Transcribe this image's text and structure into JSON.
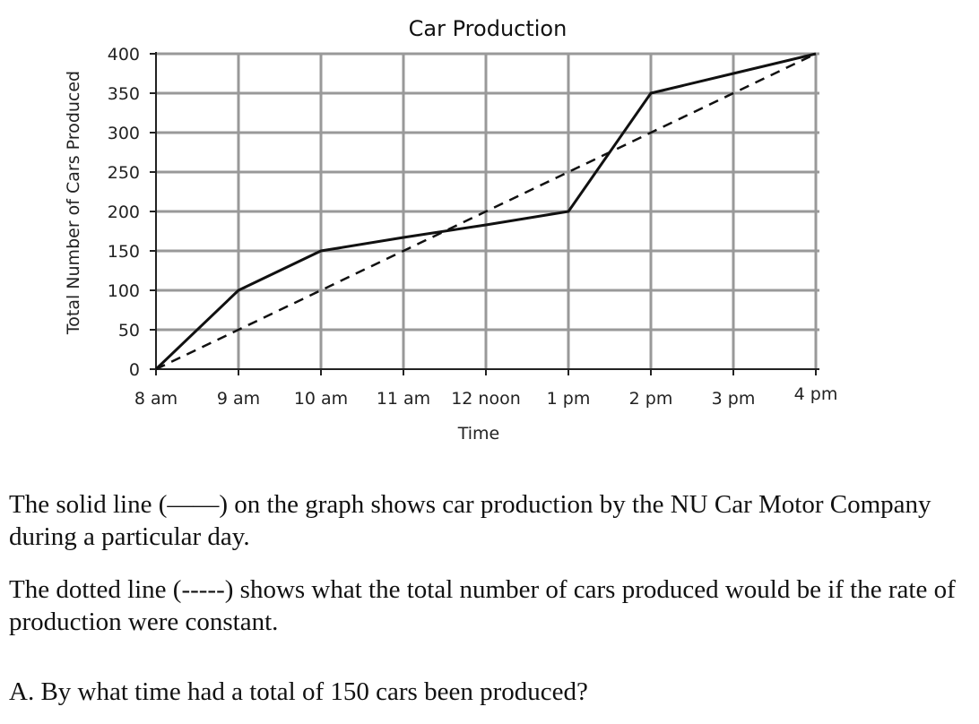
{
  "chart_data": {
    "type": "line",
    "title": "Car Production",
    "xlabel": "Time",
    "ylabel": "Total Number of Cars Produced",
    "categories": [
      "8 am",
      "9 am",
      "10 am",
      "11 am",
      "12 noon",
      "1 pm",
      "2 pm",
      "3 pm",
      "4 pm"
    ],
    "yticks": [
      0,
      50,
      100,
      150,
      200,
      250,
      300,
      350,
      400
    ],
    "ylim": [
      0,
      400
    ],
    "grid": true,
    "series": [
      {
        "style": "solid",
        "values": [
          0,
          100,
          150,
          167,
          183,
          200,
          350,
          375,
          400
        ]
      },
      {
        "style": "dashed",
        "values": [
          0,
          50,
          100,
          150,
          200,
          250,
          300,
          350,
          400
        ]
      }
    ]
  },
  "text": {
    "paragraph1": "The solid line (——) on the graph shows car production by the NU Car Motor Company during a particular day.",
    "paragraph2": "The dotted line (-----) shows what the total number of cars produced would be if the rate of production were constant.",
    "question_a": "A. By what time had a total of 150 cars been produced?"
  }
}
